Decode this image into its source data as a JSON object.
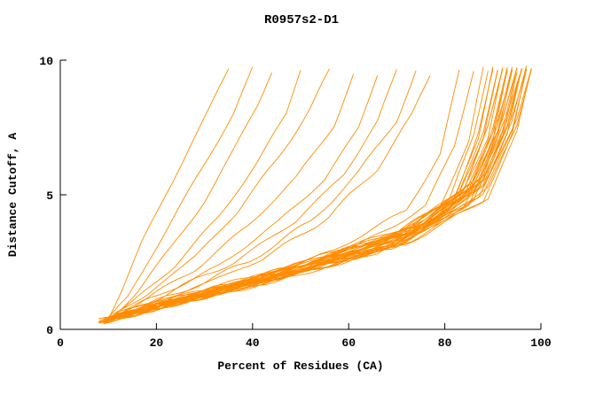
{
  "chart_data": {
    "type": "line",
    "title": "R0957s2-D1",
    "xlabel": "Percent of Residues (CA)",
    "ylabel": "Distance Cutoff, A",
    "xlim": [
      0,
      100
    ],
    "ylim": [
      0,
      10
    ],
    "x_ticks": [
      0,
      20,
      40,
      60,
      80,
      100
    ],
    "y_ticks": [
      0,
      5,
      10
    ],
    "grid": false,
    "legend": "none",
    "color": "#FF8C00",
    "curves": [
      [
        [
          10,
          0.4
        ],
        [
          13,
          1.5
        ],
        [
          17,
          3.2
        ],
        [
          22,
          5.0
        ],
        [
          27,
          6.8
        ],
        [
          31,
          8.2
        ],
        [
          35,
          9.7
        ]
      ],
      [
        [
          10,
          0.4
        ],
        [
          14,
          1.2
        ],
        [
          19,
          2.8
        ],
        [
          25,
          4.6
        ],
        [
          31,
          6.4
        ],
        [
          36,
          8.0
        ],
        [
          40,
          9.7
        ]
      ],
      [
        [
          11,
          0.5
        ],
        [
          16,
          1.4
        ],
        [
          23,
          3.0
        ],
        [
          30,
          4.8
        ],
        [
          36,
          6.6
        ],
        [
          41,
          8.3
        ],
        [
          44,
          9.6
        ]
      ],
      [
        [
          10,
          0.4
        ],
        [
          15,
          1.0
        ],
        [
          24,
          2.4
        ],
        [
          33,
          4.2
        ],
        [
          41,
          6.2
        ],
        [
          47,
          8.0
        ],
        [
          50,
          9.7
        ]
      ],
      [
        [
          11,
          0.5
        ],
        [
          18,
          1.3
        ],
        [
          28,
          2.7
        ],
        [
          37,
          4.4
        ],
        [
          45,
          6.3
        ],
        [
          52,
          8.2
        ],
        [
          56,
          9.6
        ]
      ],
      [
        [
          10,
          0.4
        ],
        [
          17,
          1.1
        ],
        [
          28,
          2.2
        ],
        [
          39,
          3.8
        ],
        [
          49,
          5.6
        ],
        [
          57,
          7.6
        ],
        [
          61,
          9.5
        ]
      ],
      [
        [
          10,
          0.4
        ],
        [
          20,
          1.2
        ],
        [
          33,
          2.4
        ],
        [
          45,
          3.9
        ],
        [
          55,
          5.6
        ],
        [
          62,
          7.5
        ],
        [
          66,
          9.5
        ]
      ],
      [
        [
          11,
          0.5
        ],
        [
          22,
          1.3
        ],
        [
          36,
          2.5
        ],
        [
          49,
          4.0
        ],
        [
          59,
          5.8
        ],
        [
          66,
          7.7
        ],
        [
          70,
          9.6
        ]
      ],
      [
        [
          10,
          0.4
        ],
        [
          24,
          1.3
        ],
        [
          39,
          2.5
        ],
        [
          52,
          4.0
        ],
        [
          62,
          5.8
        ],
        [
          70,
          7.8
        ],
        [
          74,
          9.6
        ]
      ],
      [
        [
          11,
          0.5
        ],
        [
          26,
          1.4
        ],
        [
          42,
          2.6
        ],
        [
          56,
          4.2
        ],
        [
          66,
          6.0
        ],
        [
          73,
          7.9
        ],
        [
          77,
          9.5
        ]
      ],
      [
        [
          10,
          0.4
        ],
        [
          35,
          1.6
        ],
        [
          57,
          2.9
        ],
        [
          72,
          4.4
        ],
        [
          79,
          6.5
        ],
        [
          83,
          9.6
        ]
      ],
      [
        [
          9,
          0.3
        ],
        [
          38,
          1.7
        ],
        [
          61,
          3.0
        ],
        [
          76,
          4.6
        ],
        [
          82,
          6.8
        ],
        [
          86,
          9.6
        ]
      ],
      [
        [
          8,
          0.3
        ],
        [
          40,
          1.7
        ],
        [
          65,
          3.0
        ],
        [
          79,
          4.6
        ],
        [
          85,
          7.0
        ],
        [
          88,
          9.7
        ]
      ],
      [
        [
          9,
          0.3
        ],
        [
          42,
          1.8
        ],
        [
          67,
          3.1
        ],
        [
          81,
          4.8
        ],
        [
          86,
          7.2
        ],
        [
          89,
          9.7
        ]
      ],
      [
        [
          10,
          0.4
        ],
        [
          43,
          1.9
        ],
        [
          68,
          3.2
        ],
        [
          82,
          4.9
        ],
        [
          87,
          7.3
        ],
        [
          90,
          9.6
        ]
      ],
      [
        [
          9,
          0.3
        ],
        [
          41,
          1.6
        ],
        [
          66,
          2.9
        ],
        [
          81,
          4.5
        ],
        [
          87,
          7.0
        ],
        [
          90,
          9.7
        ]
      ],
      [
        [
          10,
          0.4
        ],
        [
          44,
          2.0
        ],
        [
          69,
          3.4
        ],
        [
          83,
          5.1
        ],
        [
          88,
          7.4
        ],
        [
          91,
          9.7
        ]
      ],
      [
        [
          9,
          0.3
        ],
        [
          42,
          1.7
        ],
        [
          68,
          3.0
        ],
        [
          82,
          4.7
        ],
        [
          88,
          7.1
        ],
        [
          91,
          9.6
        ]
      ],
      [
        [
          10,
          0.4
        ],
        [
          45,
          2.1
        ],
        [
          70,
          3.5
        ],
        [
          84,
          5.2
        ],
        [
          89,
          7.5
        ],
        [
          92,
          9.7
        ]
      ],
      [
        [
          9,
          0.3
        ],
        [
          43,
          1.8
        ],
        [
          69,
          3.1
        ],
        [
          83,
          4.8
        ],
        [
          89,
          7.2
        ],
        [
          92,
          9.7
        ]
      ],
      [
        [
          11,
          0.5
        ],
        [
          46,
          2.2
        ],
        [
          71,
          3.6
        ],
        [
          84,
          5.3
        ],
        [
          89,
          7.6
        ],
        [
          92,
          9.6
        ]
      ],
      [
        [
          9,
          0.3
        ],
        [
          44,
          1.9
        ],
        [
          70,
          3.2
        ],
        [
          84,
          4.9
        ],
        [
          90,
          7.3
        ],
        [
          93,
          9.7
        ]
      ],
      [
        [
          10,
          0.4
        ],
        [
          46,
          2.1
        ],
        [
          72,
          3.5
        ],
        [
          85,
          5.2
        ],
        [
          90,
          7.5
        ],
        [
          93,
          9.7
        ]
      ],
      [
        [
          8,
          0.3
        ],
        [
          42,
          1.7
        ],
        [
          69,
          3.0
        ],
        [
          84,
          4.6
        ],
        [
          90,
          7.0
        ],
        [
          93,
          9.6
        ]
      ],
      [
        [
          9,
          0.3
        ],
        [
          45,
          2.0
        ],
        [
          71,
          3.3
        ],
        [
          85,
          5.0
        ],
        [
          91,
          7.4
        ],
        [
          94,
          9.7
        ]
      ],
      [
        [
          10,
          0.4
        ],
        [
          47,
          2.2
        ],
        [
          73,
          3.6
        ],
        [
          86,
          5.3
        ],
        [
          91,
          7.6
        ],
        [
          94,
          9.7
        ]
      ],
      [
        [
          8,
          0.3
        ],
        [
          43,
          1.8
        ],
        [
          70,
          3.1
        ],
        [
          85,
          4.7
        ],
        [
          91,
          7.1
        ],
        [
          94,
          9.6
        ]
      ],
      [
        [
          11,
          0.5
        ],
        [
          48,
          2.3
        ],
        [
          74,
          3.8
        ],
        [
          86,
          5.5
        ],
        [
          91,
          7.8
        ],
        [
          94,
          9.7
        ]
      ],
      [
        [
          9,
          0.3
        ],
        [
          46,
          2.0
        ],
        [
          72,
          3.4
        ],
        [
          86,
          5.1
        ],
        [
          92,
          7.4
        ],
        [
          95,
          9.7
        ]
      ],
      [
        [
          10,
          0.4
        ],
        [
          48,
          2.2
        ],
        [
          74,
          3.7
        ],
        [
          87,
          5.4
        ],
        [
          92,
          7.7
        ],
        [
          95,
          9.7
        ]
      ],
      [
        [
          8,
          0.3
        ],
        [
          44,
          1.8
        ],
        [
          71,
          3.2
        ],
        [
          86,
          4.8
        ],
        [
          92,
          7.2
        ],
        [
          95,
          9.6
        ]
      ],
      [
        [
          11,
          0.5
        ],
        [
          49,
          2.4
        ],
        [
          75,
          3.9
        ],
        [
          87,
          5.6
        ],
        [
          92,
          7.9
        ],
        [
          95,
          9.7
        ]
      ],
      [
        [
          9,
          0.3
        ],
        [
          47,
          2.1
        ],
        [
          73,
          3.5
        ],
        [
          87,
          5.2
        ],
        [
          93,
          7.5
        ],
        [
          96,
          9.7
        ]
      ],
      [
        [
          10,
          0.4
        ],
        [
          49,
          2.3
        ],
        [
          75,
          3.8
        ],
        [
          88,
          5.5
        ],
        [
          93,
          7.8
        ],
        [
          96,
          9.7
        ]
      ],
      [
        [
          8,
          0.3
        ],
        [
          45,
          1.9
        ],
        [
          72,
          3.3
        ],
        [
          87,
          4.9
        ],
        [
          93,
          7.3
        ],
        [
          96,
          9.6
        ]
      ],
      [
        [
          11,
          0.5
        ],
        [
          50,
          2.5
        ],
        [
          76,
          4.0
        ],
        [
          88,
          5.7
        ],
        [
          93,
          8.0
        ],
        [
          96,
          9.7
        ]
      ],
      [
        [
          9,
          0.4
        ],
        [
          46,
          2.0
        ],
        [
          74,
          3.6
        ],
        [
          88,
          5.3
        ],
        [
          93,
          7.6
        ],
        [
          96,
          9.7
        ]
      ],
      [
        [
          10,
          0.4
        ],
        [
          48,
          2.2
        ],
        [
          75,
          3.7
        ],
        [
          88,
          5.4
        ],
        [
          94,
          7.7
        ],
        [
          97,
          9.7
        ]
      ],
      [
        [
          9,
          0.3
        ],
        [
          46,
          2.0
        ],
        [
          73,
          3.4
        ],
        [
          88,
          5.0
        ],
        [
          94,
          7.4
        ],
        [
          97,
          9.7
        ]
      ],
      [
        [
          11,
          0.5
        ],
        [
          50,
          2.4
        ],
        [
          77,
          4.0
        ],
        [
          89,
          5.8
        ],
        [
          94,
          8.0
        ],
        [
          97,
          9.7
        ]
      ],
      [
        [
          8,
          0.3
        ],
        [
          44,
          1.8
        ],
        [
          72,
          3.2
        ],
        [
          88,
          4.8
        ],
        [
          94,
          7.2
        ],
        [
          97,
          9.6
        ]
      ],
      [
        [
          9,
          0.4
        ],
        [
          47,
          2.1
        ],
        [
          75,
          3.6
        ],
        [
          89,
          5.3
        ],
        [
          95,
          7.6
        ],
        [
          98,
          9.7
        ]
      ],
      [
        [
          10,
          0.4
        ],
        [
          49,
          2.3
        ],
        [
          76,
          3.9
        ],
        [
          89,
          5.6
        ],
        [
          95,
          7.9
        ],
        [
          98,
          9.7
        ]
      ],
      [
        [
          8,
          0.3
        ],
        [
          45,
          1.9
        ],
        [
          73,
          3.3
        ],
        [
          89,
          4.9
        ],
        [
          95,
          7.3
        ],
        [
          98,
          9.7
        ]
      ]
    ]
  }
}
